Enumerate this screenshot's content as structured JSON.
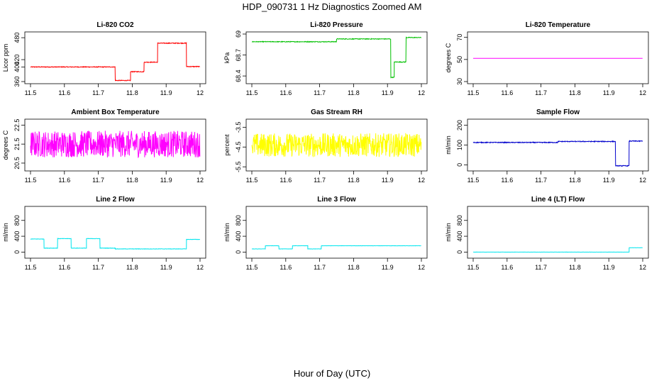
{
  "figure": {
    "title": "HDP_090731  1 Hz Diagnostics Zoomed AM",
    "xlabel": "Hour of Day (UTC)"
  },
  "chart_data": [
    {
      "type": "line",
      "title": "Li-820 CO2",
      "ylabel": "Licor ppm",
      "color": "#ff0000",
      "xlim": [
        11.5,
        12.0
      ],
      "ylim": [
        360,
        490
      ],
      "yticks": [
        360,
        400,
        420,
        480
      ],
      "xticks": [
        11.5,
        11.6,
        11.7,
        11.8,
        11.9,
        12.0
      ],
      "grid": false,
      "segments": [
        {
          "x0": 11.5,
          "x1": 11.75,
          "y": 400
        },
        {
          "x0": 11.75,
          "x1": 11.795,
          "y": 363
        },
        {
          "x0": 11.795,
          "x1": 11.835,
          "y": 387
        },
        {
          "x0": 11.835,
          "x1": 11.875,
          "y": 413
        },
        {
          "x0": 11.875,
          "x1": 11.96,
          "y": 465
        },
        {
          "x0": 11.96,
          "x1": 12.0,
          "y": 401
        }
      ],
      "noise": 1
    },
    {
      "type": "line",
      "title": "Li-820 Pressure",
      "ylabel": "kPa",
      "color": "#00c000",
      "xlim": [
        11.5,
        12.0
      ],
      "ylim": [
        68.32,
        69.0
      ],
      "yticks": [
        68.4,
        68.7,
        69.0
      ],
      "xticks": [
        11.5,
        11.6,
        11.7,
        11.8,
        11.9,
        12.0
      ],
      "grid": false,
      "segments": [
        {
          "x0": 11.5,
          "x1": 11.75,
          "y": 68.89
        },
        {
          "x0": 11.75,
          "x1": 11.91,
          "y": 68.93
        },
        {
          "x0": 11.91,
          "x1": 11.92,
          "y": 68.38
        },
        {
          "x0": 11.92,
          "x1": 11.955,
          "y": 68.6
        },
        {
          "x0": 11.955,
          "x1": 12.0,
          "y": 68.95
        }
      ],
      "noise": 0.005
    },
    {
      "type": "line",
      "title": "Li-820 Temperature",
      "ylabel": "degrees C",
      "color": "#ff00ff",
      "xlim": [
        11.5,
        12.0
      ],
      "ylim": [
        30,
        73
      ],
      "yticks": [
        30,
        50,
        70
      ],
      "xticks": [
        11.5,
        11.6,
        11.7,
        11.8,
        11.9,
        12.0
      ],
      "grid": false,
      "segments": [
        {
          "x0": 11.5,
          "x1": 12.0,
          "y": 51
        }
      ],
      "noise": 0
    },
    {
      "type": "line",
      "title": "Ambient Box Temperature",
      "ylabel": "degrees C",
      "color": "#ff00ff",
      "xlim": [
        11.5,
        12.0
      ],
      "ylim": [
        20.2,
        22.7
      ],
      "yticks": [
        20.5,
        21.5,
        22.5
      ],
      "xticks": [
        11.5,
        11.6,
        11.7,
        11.8,
        11.9,
        12.0
      ],
      "grid": false,
      "segments": [
        {
          "x0": 11.5,
          "x1": 12.0,
          "y": 21.5
        }
      ],
      "noise": 0.7
    },
    {
      "type": "line",
      "title": "Gas Stream RH",
      "ylabel": "percent",
      "color": "#ffff00",
      "xlim": [
        11.5,
        12.0
      ],
      "ylim": [
        -5.6,
        -3.2
      ],
      "yticks": [
        -5.5,
        -4.5,
        -3.5
      ],
      "xticks": [
        11.5,
        11.6,
        11.7,
        11.8,
        11.9,
        12.0
      ],
      "grid": false,
      "segments": [
        {
          "x0": 11.5,
          "x1": 12.0,
          "y": -4.4
        }
      ],
      "noise": 0.6
    },
    {
      "type": "line",
      "title": "Sample Flow",
      "ylabel": "ml/min",
      "color": "#0000cc",
      "xlim": [
        11.5,
        12.0
      ],
      "ylim": [
        -20,
        220
      ],
      "yticks": [
        0,
        100,
        200
      ],
      "xticks": [
        11.5,
        11.6,
        11.7,
        11.8,
        11.9,
        12.0
      ],
      "grid": false,
      "segments": [
        {
          "x0": 11.5,
          "x1": 11.75,
          "y": 113
        },
        {
          "x0": 11.75,
          "x1": 11.92,
          "y": 118
        },
        {
          "x0": 11.92,
          "x1": 11.96,
          "y": -5
        },
        {
          "x0": 11.96,
          "x1": 12.0,
          "y": 120
        }
      ],
      "noise": 2
    },
    {
      "type": "line",
      "title": "Line 2 Flow",
      "ylabel": "ml/min",
      "color": "#00e5ee",
      "xlim": [
        11.5,
        12.0
      ],
      "ylim": [
        -100,
        1100
      ],
      "yticks": [
        0,
        400,
        800
      ],
      "xticks": [
        11.5,
        11.6,
        11.7,
        11.8,
        11.9,
        12.0
      ],
      "grid": false,
      "segments": [
        {
          "x0": 11.5,
          "x1": 11.54,
          "y": 330
        },
        {
          "x0": 11.54,
          "x1": 11.58,
          "y": 100
        },
        {
          "x0": 11.58,
          "x1": 11.62,
          "y": 340
        },
        {
          "x0": 11.62,
          "x1": 11.665,
          "y": 100
        },
        {
          "x0": 11.665,
          "x1": 11.705,
          "y": 340
        },
        {
          "x0": 11.705,
          "x1": 11.75,
          "y": 100
        },
        {
          "x0": 11.75,
          "x1": 11.96,
          "y": 80
        },
        {
          "x0": 11.96,
          "x1": 12.0,
          "y": 320
        }
      ],
      "noise": 5
    },
    {
      "type": "line",
      "title": "Line 3 Flow",
      "ylabel": "ml/min",
      "color": "#00e5ee",
      "xlim": [
        11.5,
        12.0
      ],
      "ylim": [
        -100,
        1100
      ],
      "yticks": [
        0,
        400,
        800
      ],
      "xticks": [
        11.5,
        11.6,
        11.7,
        11.8,
        11.9,
        12.0
      ],
      "grid": false,
      "segments": [
        {
          "x0": 11.5,
          "x1": 11.54,
          "y": 80
        },
        {
          "x0": 11.54,
          "x1": 11.58,
          "y": 160
        },
        {
          "x0": 11.58,
          "x1": 11.62,
          "y": 80
        },
        {
          "x0": 11.62,
          "x1": 11.665,
          "y": 160
        },
        {
          "x0": 11.665,
          "x1": 11.705,
          "y": 80
        },
        {
          "x0": 11.705,
          "x1": 12.0,
          "y": 160
        }
      ],
      "noise": 3
    },
    {
      "type": "line",
      "title": "Line 4 (LT) Flow",
      "ylabel": "ml/min",
      "color": "#00e5ee",
      "xlim": [
        11.5,
        12.0
      ],
      "ylim": [
        -100,
        1100
      ],
      "yticks": [
        0,
        400,
        800
      ],
      "xticks": [
        11.5,
        11.6,
        11.7,
        11.8,
        11.9,
        12.0
      ],
      "grid": false,
      "segments": [
        {
          "x0": 11.5,
          "x1": 11.96,
          "y": 0
        },
        {
          "x0": 11.96,
          "x1": 12.0,
          "y": 110
        }
      ],
      "noise": 2
    }
  ]
}
